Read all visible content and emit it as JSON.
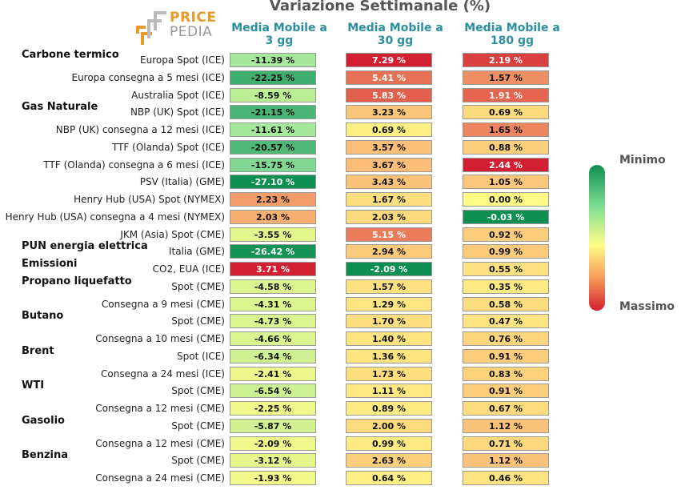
{
  "header": {
    "title": "Variazione Settimanale (%)"
  },
  "logo": {
    "line1": "PRICE",
    "line2": "PEDIA"
  },
  "legend": {
    "min_label": "Minimo",
    "max_label": "Massimo",
    "min_color": "#0e8f52",
    "mid_color": "#fffb86",
    "max_color": "#d21f32"
  },
  "chart_data": {
    "type": "table",
    "title": "Variazione Settimanale (%)",
    "columns": [
      {
        "line1": "Media Mobile a",
        "line2": "3 gg"
      },
      {
        "line1": "Media Mobile a",
        "line2": "30 gg"
      },
      {
        "line1": "Media Mobile a",
        "line2": "180 gg"
      }
    ],
    "unit": "%",
    "color_scale": {
      "min_label": "Minimo",
      "max_label": "Massimo"
    },
    "rows": [
      {
        "category": "Carbone termico",
        "label": "Europa Spot (ICE)",
        "values": [
          -11.39,
          7.29,
          2.19
        ]
      },
      {
        "category": "",
        "label": "Europa consegna a 5 mesi (ICE)",
        "values": [
          -22.25,
          5.41,
          1.57
        ]
      },
      {
        "category": "",
        "label": "Australia Spot (ICE)",
        "values": [
          -8.59,
          5.83,
          1.91
        ]
      },
      {
        "category": "Gas Naturale",
        "label": "NBP (UK) Spot (ICE)",
        "values": [
          -21.15,
          3.23,
          0.69
        ]
      },
      {
        "category": "",
        "label": "NBP (UK) consegna a 12 mesi (ICE)",
        "values": [
          -11.61,
          0.69,
          1.65
        ]
      },
      {
        "category": "",
        "label": "TTF (Olanda) Spot (ICE)",
        "values": [
          -20.57,
          3.57,
          0.88
        ]
      },
      {
        "category": "",
        "label": "TTF (Olanda) consegna a 6 mesi (ICE)",
        "values": [
          -15.75,
          3.67,
          2.44
        ]
      },
      {
        "category": "",
        "label": "PSV (Italia) (GME)",
        "values": [
          -27.1,
          3.43,
          1.05
        ]
      },
      {
        "category": "",
        "label": "Henry Hub (USA) Spot (NYMEX)",
        "values": [
          2.23,
          1.67,
          0.0
        ]
      },
      {
        "category": "",
        "label": "Henry Hub (USA) consegna a 4 mesi (NYMEX)",
        "values": [
          2.03,
          2.03,
          -0.03
        ]
      },
      {
        "category": "",
        "label": "JKM (Asia) Spot (CME)",
        "values": [
          -3.55,
          5.15,
          0.92
        ]
      },
      {
        "category": "PUN energia elettrica",
        "label": "Italia (GME)",
        "values": [
          -26.42,
          2.94,
          0.99
        ]
      },
      {
        "category": "Emissioni",
        "label": "CO2, EUA (ICE)",
        "values": [
          3.71,
          -2.09,
          0.55
        ]
      },
      {
        "category": "Propano liquefatto",
        "label": "Spot (CME)",
        "values": [
          -4.58,
          1.57,
          0.35
        ]
      },
      {
        "category": "",
        "label": "Consegna a 9 mesi (CME)",
        "values": [
          -4.31,
          1.29,
          0.58
        ]
      },
      {
        "category": "Butano",
        "label": "Spot (CME)",
        "values": [
          -4.73,
          1.7,
          0.47
        ]
      },
      {
        "category": "",
        "label": "Consegna a 10 mesi (CME)",
        "values": [
          -4.66,
          1.4,
          0.76
        ]
      },
      {
        "category": "Brent",
        "label": "Spot (ICE)",
        "values": [
          -6.34,
          1.36,
          0.91
        ]
      },
      {
        "category": "",
        "label": "Consegna a 24 mesi (ICE)",
        "values": [
          -2.41,
          1.73,
          0.83
        ]
      },
      {
        "category": "WTI",
        "label": "Spot (CME)",
        "values": [
          -6.54,
          1.11,
          0.91
        ]
      },
      {
        "category": "",
        "label": "Consegna a 12 mesi (CME)",
        "values": [
          -2.25,
          0.89,
          0.67
        ]
      },
      {
        "category": "Gasolio",
        "label": "Spot (CME)",
        "values": [
          -5.87,
          2.0,
          1.12
        ]
      },
      {
        "category": "",
        "label": "Consegna a 12 mesi (CME)",
        "values": [
          -2.09,
          0.99,
          0.71
        ]
      },
      {
        "category": "Benzina",
        "label": "Spot (CME)",
        "values": [
          -3.12,
          2.63,
          1.12
        ]
      },
      {
        "category": "",
        "label": "Consegna a 24 mesi (CME)",
        "values": [
          -1.93,
          0.64,
          0.46
        ]
      }
    ]
  }
}
